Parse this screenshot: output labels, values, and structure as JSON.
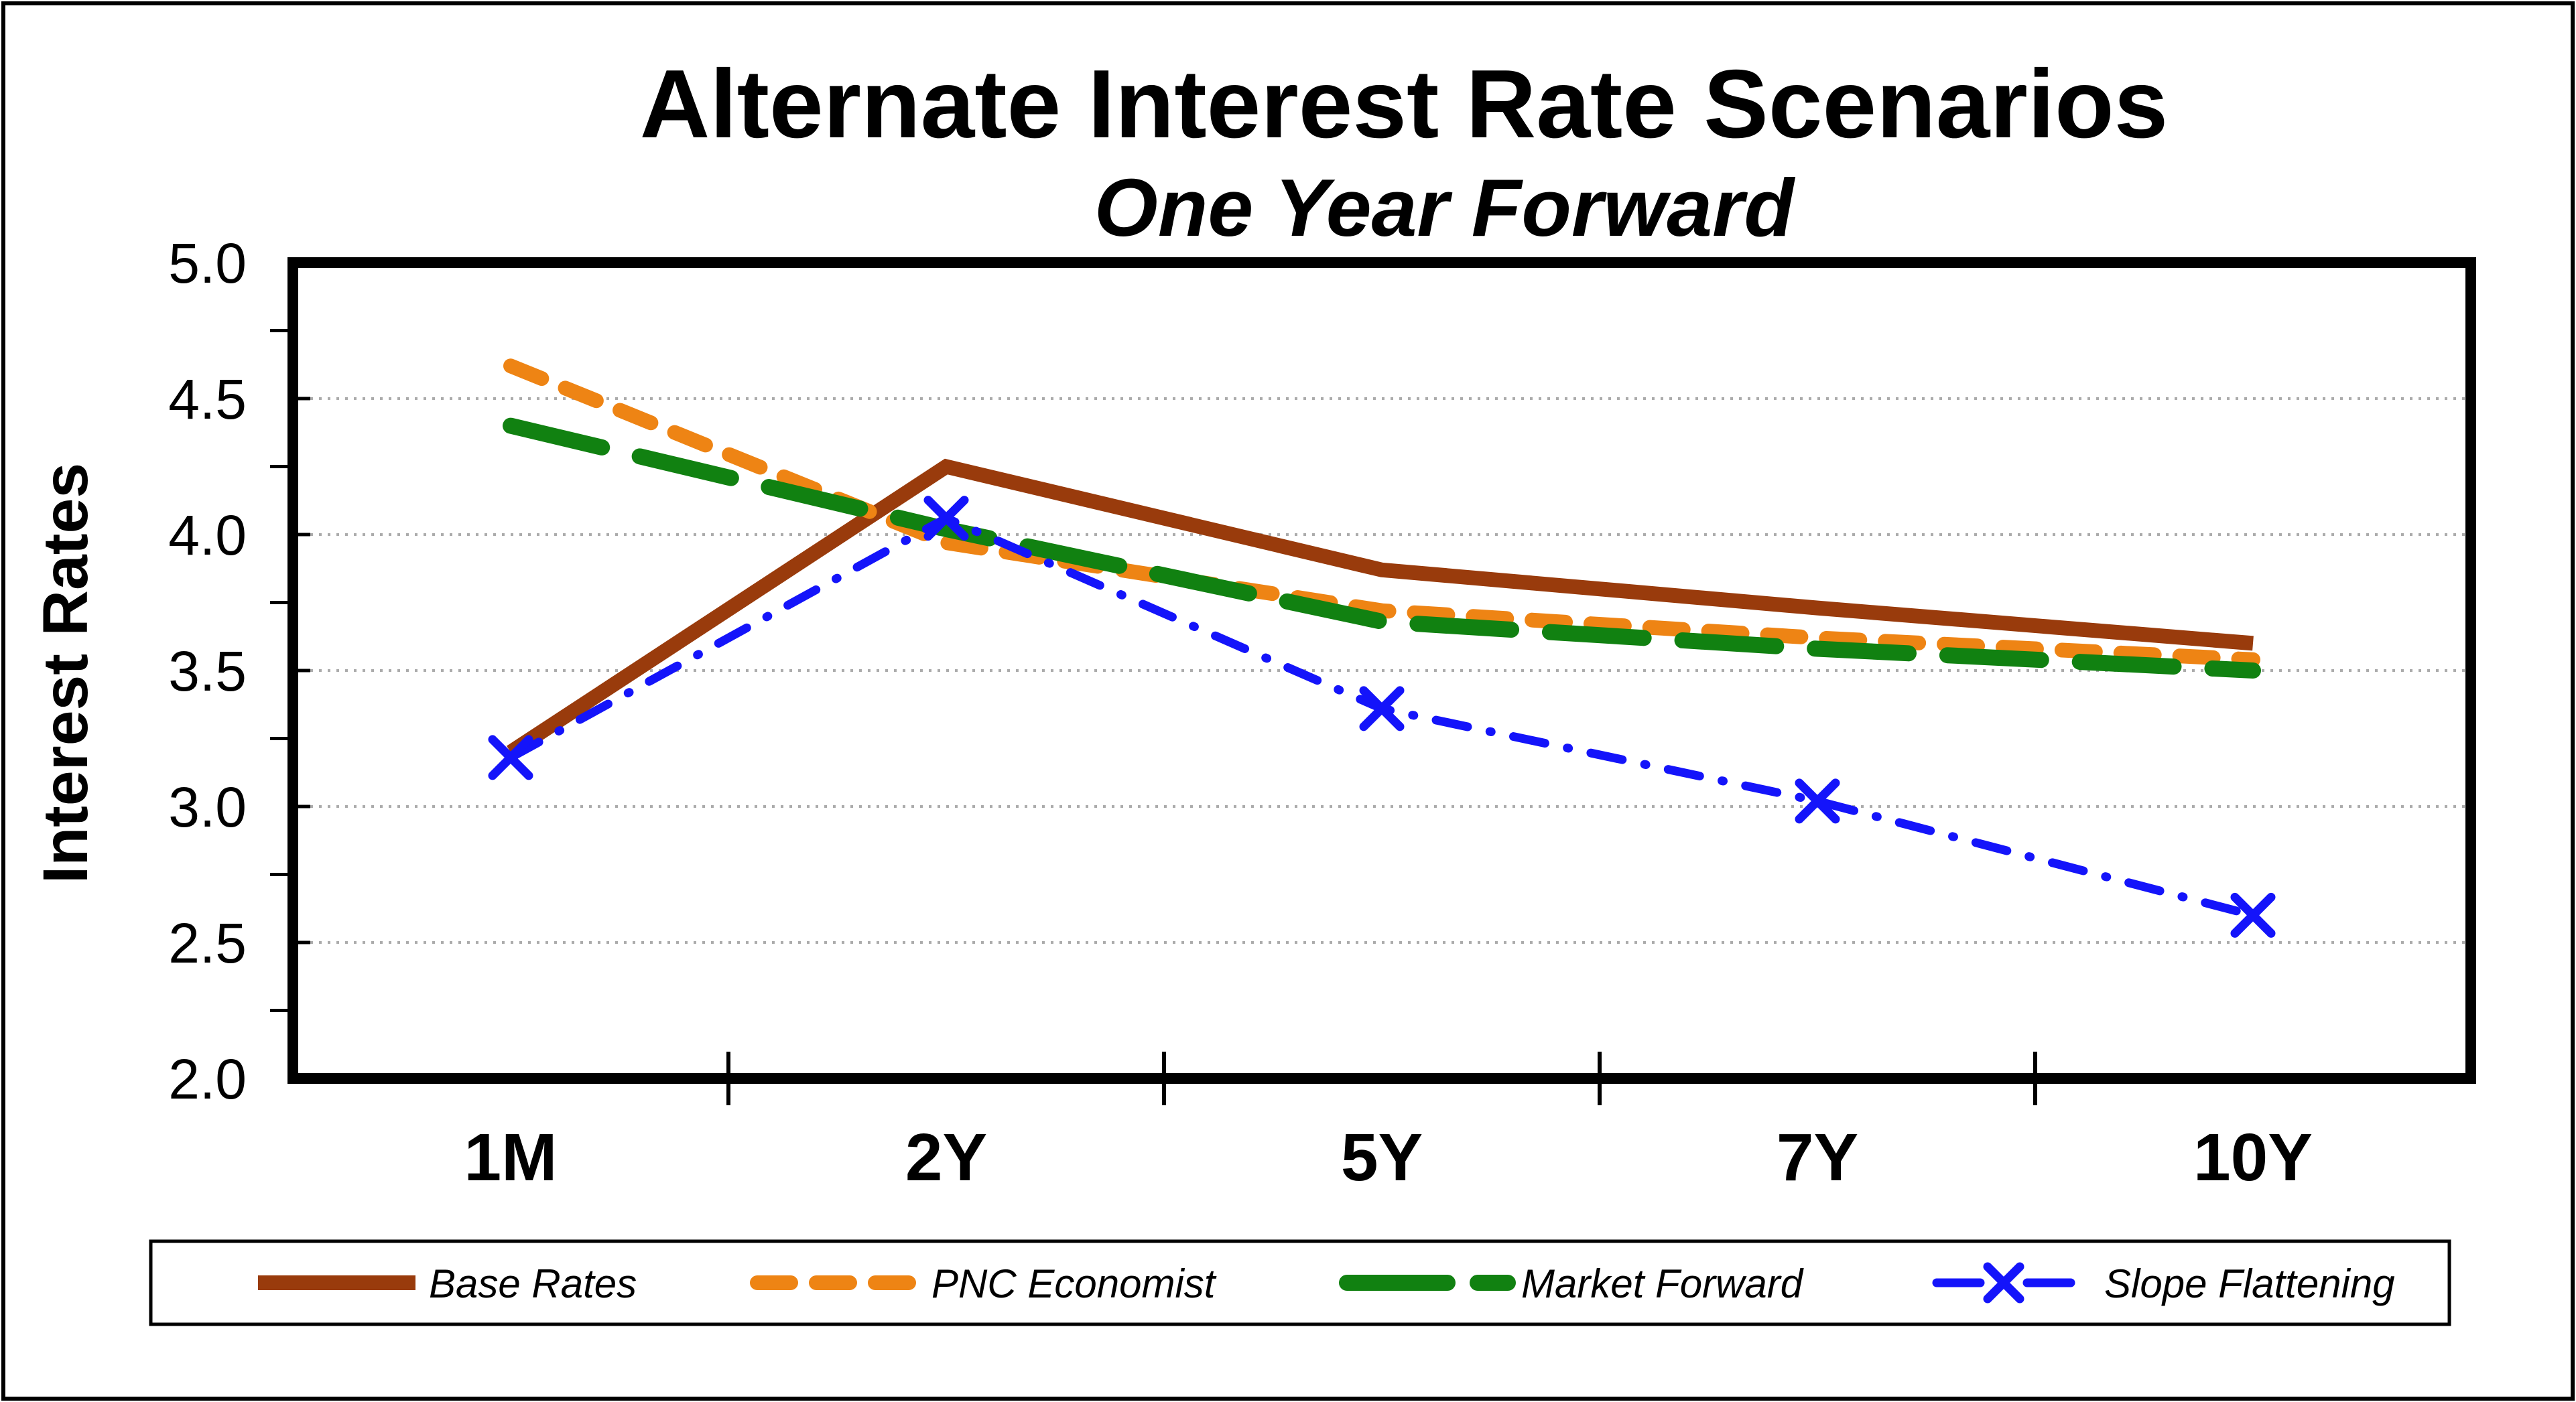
{
  "title": "Alternate Interest Rate Scenarios",
  "subtitle": "One Year Forward",
  "chart_data": {
    "type": "line",
    "categories": [
      "1M",
      "2Y",
      "5Y",
      "7Y",
      "10Y"
    ],
    "series": [
      {
        "name": "Base Rates",
        "color": "#993B0C",
        "style": "solid",
        "marker": "none",
        "values": [
          3.2,
          4.25,
          3.87,
          3.73,
          3.6
        ]
      },
      {
        "name": "PNC Economist",
        "color": "#EE8414",
        "style": "dashed",
        "marker": "none",
        "values": [
          4.62,
          3.97,
          3.72,
          3.62,
          3.54
        ]
      },
      {
        "name": "Market Forward",
        "color": "#118111",
        "style": "long-dash",
        "marker": "none",
        "values": [
          4.4,
          4.02,
          3.68,
          3.58,
          3.5
        ]
      },
      {
        "name": "Slope Flattening",
        "color": "#1414FA",
        "style": "dash-dot",
        "marker": "x",
        "values": [
          3.18,
          4.06,
          3.36,
          3.02,
          2.6
        ]
      }
    ],
    "xlabel": "",
    "ylabel": "Interest Rates",
    "ylim": [
      2.0,
      5.0
    ],
    "y_ticks": [
      "5.0",
      "4.5",
      "4.0",
      "3.5",
      "3.0",
      "2.5",
      "2.0"
    ],
    "minor_tick_step": 0.25,
    "grid": "horizontal-dotted",
    "grid_color": "#ABABAB",
    "frame_color": "#000000",
    "legend_position": "bottom"
  }
}
